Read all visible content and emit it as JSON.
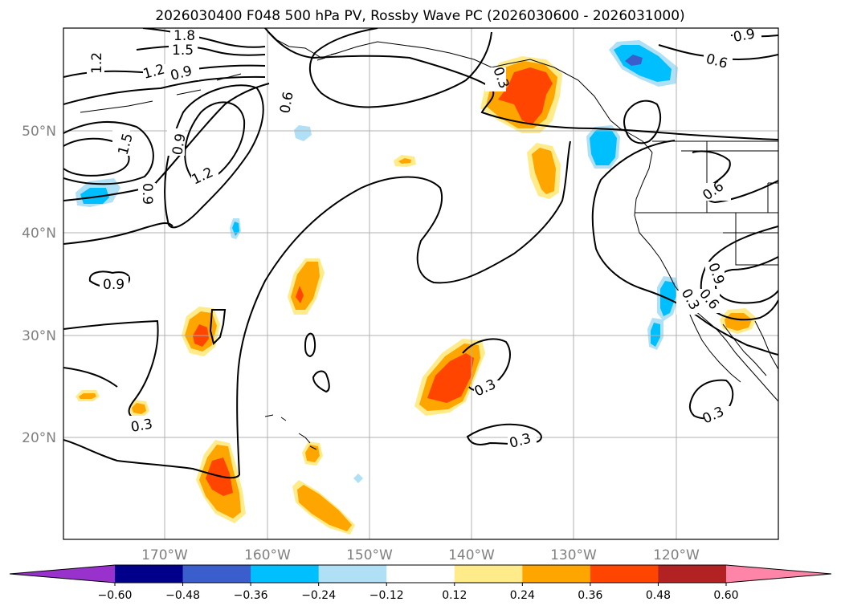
{
  "title": "2026030400 F048 500 hPa PV, Rossby Wave PC (2026030600 - 2026031000)",
  "lon_ticks": [
    "170°W",
    "160°W",
    "150°W",
    "140°W",
    "130°W",
    "120°W"
  ],
  "lat_ticks": [
    "50°N",
    "40°N",
    "30°N",
    "20°N"
  ],
  "colorbar": {
    "ticks": [
      "−0.60",
      "−0.48",
      "−0.36",
      "−0.24",
      "−0.12",
      "0.12",
      "0.24",
      "0.36",
      "0.48",
      "0.60"
    ],
    "colors": [
      "#9932cc",
      "#00008b",
      "#3a5fcd",
      "#00bfff",
      "#b0e0f6",
      "#ffffff",
      "#ffeb8a",
      "#ffa500",
      "#ff4500",
      "#b22222",
      "#ff85a8"
    ]
  },
  "contour_labels": [
    {
      "text": "1.8"
    },
    {
      "text": "1.5"
    },
    {
      "text": "1.2"
    },
    {
      "text": "1.2"
    },
    {
      "text": "0.9"
    },
    {
      "text": "0.6"
    },
    {
      "text": "1.5"
    },
    {
      "text": "0.9"
    },
    {
      "text": "1.2"
    },
    {
      "text": "0.9"
    },
    {
      "text": "0.9"
    },
    {
      "text": "0.3"
    },
    {
      "text": "0.3"
    },
    {
      "text": "0.3"
    },
    {
      "text": "0.3"
    },
    {
      "text": "0.3"
    },
    {
      "text": "0.9"
    },
    {
      "text": "0.6"
    },
    {
      "text": "0.6"
    },
    {
      "text": "0.6"
    },
    {
      "text": "0.9"
    },
    {
      "text": "0.3"
    }
  ]
}
